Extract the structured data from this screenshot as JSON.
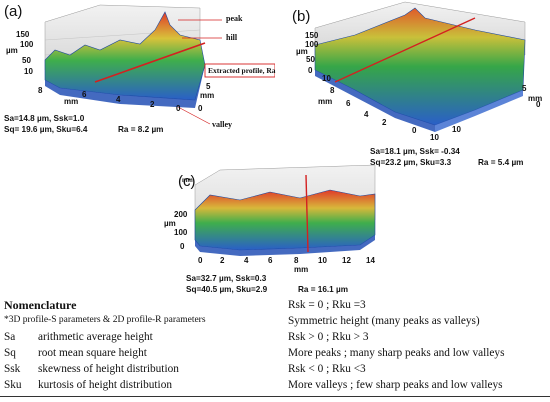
{
  "panels": {
    "a": {
      "label": "(a)",
      "z_ticks": [
        "150",
        "100",
        "50",
        "10"
      ],
      "z_unit": "µm",
      "x_ticks": [
        "8",
        "6",
        "4",
        "2",
        "0"
      ],
      "x_unit": "mm",
      "y_ticks": [
        "5",
        "0"
      ],
      "y_unit": "mm",
      "annotations": {
        "peak": "peak",
        "hill": "hill",
        "profile": "Extracted profile, Ra",
        "valley": "valley"
      },
      "params_line1": "Sa=14.8 µm,  Ssk=1.0",
      "params_line2": "Sq= 19.6 µm, Sku=6.4",
      "ra": "Ra = 8.2 µm"
    },
    "b": {
      "label": "(b)",
      "z_ticks": [
        "150",
        "100",
        "50",
        "0"
      ],
      "z_unit": "µm",
      "x_ticks": [
        "10",
        "8",
        "6",
        "4",
        "2",
        "0"
      ],
      "x_unit": "mm",
      "y_ticks": [
        "5",
        "0"
      ],
      "y_unit": "mm",
      "corner_ticks": [
        "10",
        "10"
      ],
      "params_line1": "Sa=18.1 µm,  Ssk= -0.34",
      "params_line2": "Sq=23.2 µm, Sku=3.3",
      "ra": "Ra = 5.4 µm"
    },
    "c": {
      "label": "(c)",
      "z_ticks": [
        "mm",
        "200",
        "100",
        "0"
      ],
      "z_unit": "µm",
      "x_ticks": [
        "0",
        "2",
        "4",
        "6",
        "8",
        "10",
        "12",
        "14"
      ],
      "x_unit": "mm",
      "params_line1": "Sa=32.7 µm,  Ssk=0.3",
      "params_line2": "Sq=40.5 µm, Sku=2.9",
      "ra": "Ra = 16.1 µm"
    }
  },
  "nomenclature": {
    "title": "Nomenclature",
    "subtitle": "*3D profile-S parameters & 2D profile-R parameters",
    "rows": [
      {
        "sym": "Sa",
        "desc": "arithmetic average height"
      },
      {
        "sym": "Sq",
        "desc": "root mean square height"
      },
      {
        "sym": "Ssk",
        "desc": "skewness of height distribution"
      },
      {
        "sym": "Sku",
        "desc": "kurtosis of height distribution"
      }
    ],
    "right": [
      "Rsk = 0 ; Rku =3",
      "Symmetric height (many peaks as valleys)",
      "Rsk > 0 ; Rku > 3",
      "More peaks ; many sharp peaks and low valleys",
      "Rsk < 0 ; Rku <3",
      "More valleys ; few sharp peaks and low valleys"
    ]
  },
  "colors": {
    "accent_red": "#d42020",
    "surface_green": "#2fa84a",
    "surface_blue": "#2a5fc8"
  }
}
